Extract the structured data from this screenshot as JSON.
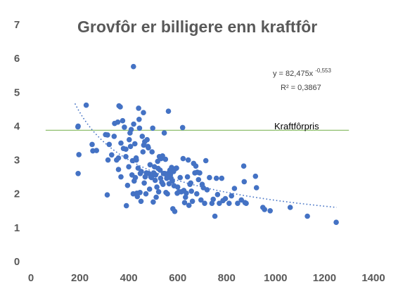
{
  "chart_data": {
    "type": "scatter",
    "title": "Grovfôr er billigere enn kraftfôr",
    "xlabel": "",
    "ylabel": "",
    "xlim": [
      0,
      1400
    ],
    "ylim": [
      0,
      7
    ],
    "x_ticks": [
      "0",
      "200",
      "400",
      "600",
      "800",
      "1000",
      "1200",
      "1400"
    ],
    "y_ticks": [
      "0",
      "1",
      "2",
      "3",
      "4",
      "5",
      "6",
      "7"
    ],
    "grid": false,
    "marker_color": "#4472C4",
    "points": [
      [
        193,
        4.0
      ],
      [
        192,
        3.98
      ],
      [
        196,
        3.16
      ],
      [
        193,
        2.6
      ],
      [
        226,
        4.62
      ],
      [
        250,
        3.46
      ],
      [
        253,
        3.27
      ],
      [
        268,
        3.28
      ],
      [
        305,
        3.75
      ],
      [
        313,
        3.74
      ],
      [
        315,
        3.0
      ],
      [
        320,
        3.46
      ],
      [
        312,
        1.97
      ],
      [
        330,
        3.15
      ],
      [
        340,
        3.7
      ],
      [
        342,
        4.08
      ],
      [
        350,
        3.0
      ],
      [
        355,
        4.12
      ],
      [
        358,
        3.06
      ],
      [
        358,
        2.72
      ],
      [
        360,
        4.6
      ],
      [
        365,
        4.57
      ],
      [
        368,
        3.5
      ],
      [
        368,
        2.5
      ],
      [
        375,
        4.16
      ],
      [
        378,
        3.34
      ],
      [
        382,
        3.97
      ],
      [
        388,
        3.1
      ],
      [
        388,
        3.32
      ],
      [
        390,
        1.65
      ],
      [
        395,
        2.25
      ],
      [
        400,
        2.8
      ],
      [
        402,
        3.6
      ],
      [
        405,
        3.8
      ],
      [
        407,
        3.4
      ],
      [
        410,
        3.9
      ],
      [
        413,
        2.56
      ],
      [
        415,
        2.98
      ],
      [
        418,
        2.0
      ],
      [
        419,
        5.76
      ],
      [
        420,
        4.06
      ],
      [
        422,
        2.38
      ],
      [
        425,
        3.48
      ],
      [
        427,
        2.48
      ],
      [
        430,
        3.06
      ],
      [
        431,
        3.0
      ],
      [
        433,
        2.02
      ],
      [
        435,
        1.92
      ],
      [
        438,
        2.76
      ],
      [
        440,
        4.53
      ],
      [
        442,
        4.2
      ],
      [
        444,
        3.94
      ],
      [
        446,
        2.04
      ],
      [
        447,
        2.6
      ],
      [
        450,
        1.78
      ],
      [
        451,
        2.66
      ],
      [
        455,
        3.7
      ],
      [
        458,
        3.24
      ],
      [
        460,
        4.4
      ],
      [
        461,
        3.44
      ],
      [
        463,
        2.32
      ],
      [
        465,
        3.54
      ],
      [
        467,
        2.5
      ],
      [
        470,
        2.0
      ],
      [
        472,
        2.62
      ],
      [
        475,
        3.6
      ],
      [
        478,
        3.4
      ],
      [
        480,
        3.36
      ],
      [
        482,
        2.6
      ],
      [
        485,
        2.14
      ],
      [
        487,
        2.86
      ],
      [
        490,
        2.5
      ],
      [
        493,
        2.48
      ],
      [
        495,
        3.24
      ],
      [
        498,
        3.94
      ],
      [
        500,
        1.76
      ],
      [
        502,
        2.62
      ],
      [
        505,
        2.8
      ],
      [
        508,
        2.4
      ],
      [
        510,
        2.56
      ],
      [
        512,
        1.9
      ],
      [
        515,
        2.2
      ],
      [
        518,
        2.96
      ],
      [
        520,
        2.75
      ],
      [
        522,
        2.06
      ],
      [
        525,
        3.1
      ],
      [
        528,
        2.7
      ],
      [
        530,
        2.46
      ],
      [
        532,
        3.04
      ],
      [
        535,
        2.34
      ],
      [
        538,
        3.12
      ],
      [
        540,
        2.28
      ],
      [
        542,
        2.6
      ],
      [
        545,
        3.8
      ],
      [
        547,
        2.6
      ],
      [
        550,
        3.02
      ],
      [
        552,
        2.04
      ],
      [
        555,
        2.46
      ],
      [
        558,
        2.0
      ],
      [
        560,
        2.6
      ],
      [
        562,
        4.44
      ],
      [
        565,
        2.3
      ],
      [
        568,
        2.7
      ],
      [
        570,
        2.56
      ],
      [
        573,
        2.46
      ],
      [
        575,
        2.78
      ],
      [
        578,
        2.38
      ],
      [
        580,
        1.56
      ],
      [
        583,
        2.66
      ],
      [
        585,
        2.24
      ],
      [
        588,
        1.48
      ],
      [
        590,
        2.74
      ],
      [
        595,
        2.76
      ],
      [
        598,
        2.02
      ],
      [
        600,
        2.2
      ],
      [
        605,
        2.06
      ],
      [
        610,
        2.48
      ],
      [
        615,
        2.06
      ],
      [
        620,
        3.96
      ],
      [
        622,
        3.04
      ],
      [
        625,
        2.1
      ],
      [
        628,
        1.74
      ],
      [
        632,
        1.9
      ],
      [
        635,
        2.02
      ],
      [
        640,
        2.5
      ],
      [
        643,
        3.0
      ],
      [
        646,
        1.66
      ],
      [
        650,
        2.28
      ],
      [
        653,
        2.32
      ],
      [
        656,
        2.08
      ],
      [
        660,
        1.78
      ],
      [
        665,
        2.9
      ],
      [
        670,
        2.62
      ],
      [
        674,
        2.82
      ],
      [
        678,
        2.0
      ],
      [
        680,
        2.64
      ],
      [
        685,
        2.42
      ],
      [
        690,
        2.62
      ],
      [
        695,
        1.82
      ],
      [
        700,
        2.28
      ],
      [
        705,
        2.18
      ],
      [
        710,
        1.72
      ],
      [
        715,
        2.98
      ],
      [
        720,
        2.12
      ],
      [
        730,
        2.48
      ],
      [
        740,
        1.72
      ],
      [
        745,
        1.84
      ],
      [
        752,
        1.34
      ],
      [
        758,
        2.46
      ],
      [
        763,
        1.98
      ],
      [
        770,
        1.72
      ],
      [
        780,
        2.46
      ],
      [
        785,
        1.8
      ],
      [
        795,
        1.86
      ],
      [
        810,
        1.72
      ],
      [
        820,
        1.94
      ],
      [
        832,
        2.16
      ],
      [
        845,
        1.72
      ],
      [
        860,
        1.82
      ],
      [
        870,
        2.82
      ],
      [
        872,
        2.36
      ],
      [
        875,
        1.74
      ],
      [
        880,
        1.72
      ],
      [
        918,
        2.52
      ],
      [
        922,
        2.18
      ],
      [
        948,
        1.6
      ],
      [
        955,
        1.54
      ],
      [
        978,
        1.5
      ],
      [
        1060,
        1.6
      ],
      [
        1130,
        1.34
      ],
      [
        1248,
        1.16
      ]
    ],
    "trendline": {
      "type": "power",
      "a": 82.475,
      "b": -0.553,
      "x_range": [
        180,
        1250
      ],
      "equation_base": "y = 82,475x",
      "equation_exp": "-0,553",
      "r2_label": "R² = 0,3867"
    },
    "reference_line": {
      "y": 3.88,
      "x_range": [
        60,
        1300
      ],
      "label": "Kraftfôrpris",
      "color": "#70AD47"
    }
  }
}
